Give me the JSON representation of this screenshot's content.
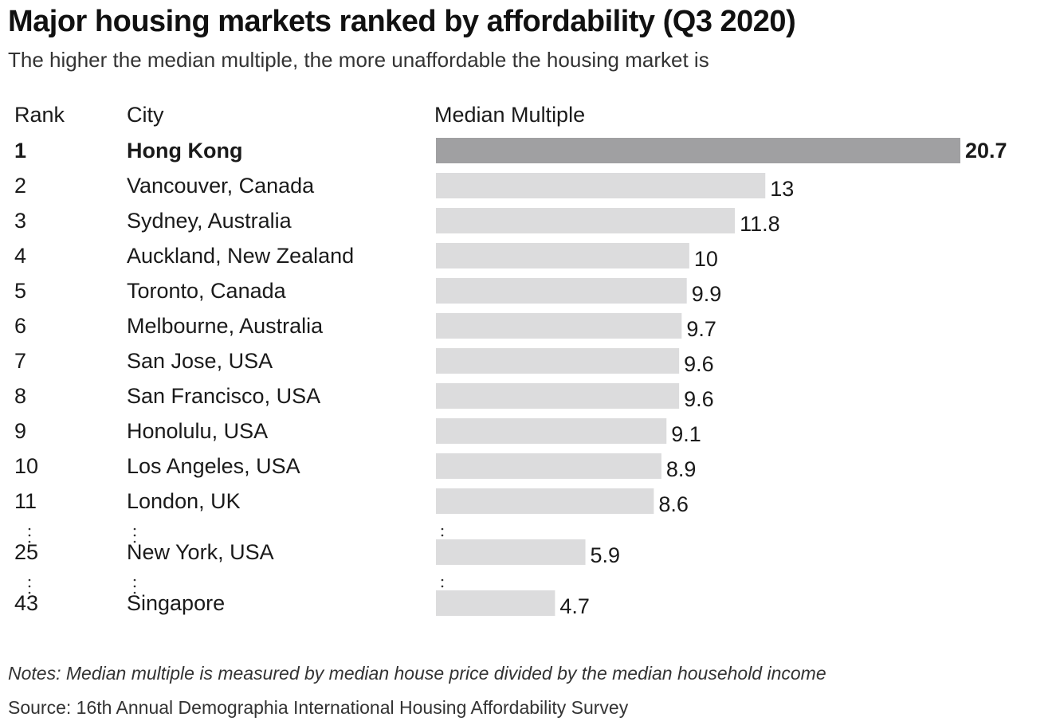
{
  "chart_data": {
    "type": "bar",
    "orientation": "horizontal",
    "title": "Major housing markets ranked by affordability (Q3 2020)",
    "subtitle": "The higher the median multiple, the more unaffordable the housing market is",
    "columns": {
      "rank": "Rank",
      "city": "City",
      "value": "Median Multiple"
    },
    "rows": [
      {
        "rank": "1",
        "city": "Hong Kong",
        "value": 20.7,
        "label": "20.7",
        "highlight": true
      },
      {
        "rank": "2",
        "city": "Vancouver, Canada",
        "value": 13,
        "label": "13"
      },
      {
        "rank": "3",
        "city": "Sydney, Australia",
        "value": 11.8,
        "label": "11.8"
      },
      {
        "rank": "4",
        "city": "Auckland, New Zealand",
        "value": 10,
        "label": "10"
      },
      {
        "rank": "5",
        "city": "Toronto, Canada",
        "value": 9.9,
        "label": "9.9"
      },
      {
        "rank": "6",
        "city": "Melbourne, Australia",
        "value": 9.7,
        "label": "9.7"
      },
      {
        "rank": "7",
        "city": "San Jose, USA",
        "value": 9.6,
        "label": "9.6"
      },
      {
        "rank": "8",
        "city": "San Francisco, USA",
        "value": 9.6,
        "label": "9.6"
      },
      {
        "rank": "9",
        "city": "Honolulu, USA",
        "value": 9.1,
        "label": "9.1"
      },
      {
        "rank": "10",
        "city": "Los Angeles, USA",
        "value": 8.9,
        "label": "8.9"
      },
      {
        "rank": "11",
        "city": "London, UK",
        "value": 8.6,
        "label": "8.6"
      },
      {
        "rank": "25",
        "city": "New York, USA",
        "value": 5.9,
        "label": "5.9",
        "gap_before": true
      },
      {
        "rank": "43",
        "city": "Singapore",
        "value": 4.7,
        "label": "4.7",
        "gap_before": true
      }
    ],
    "xlim": [
      0,
      20.7
    ],
    "grid": false,
    "legend": "none",
    "colors": {
      "highlight": "#a0a0a2",
      "bar": "#dcdcdd",
      "text": "#1a1a1a"
    }
  },
  "notes": "Notes: Median multiple is measured by median house price divided by the median household income",
  "source": "Source: 16th Annual Demographia International Housing Affordability Survey"
}
